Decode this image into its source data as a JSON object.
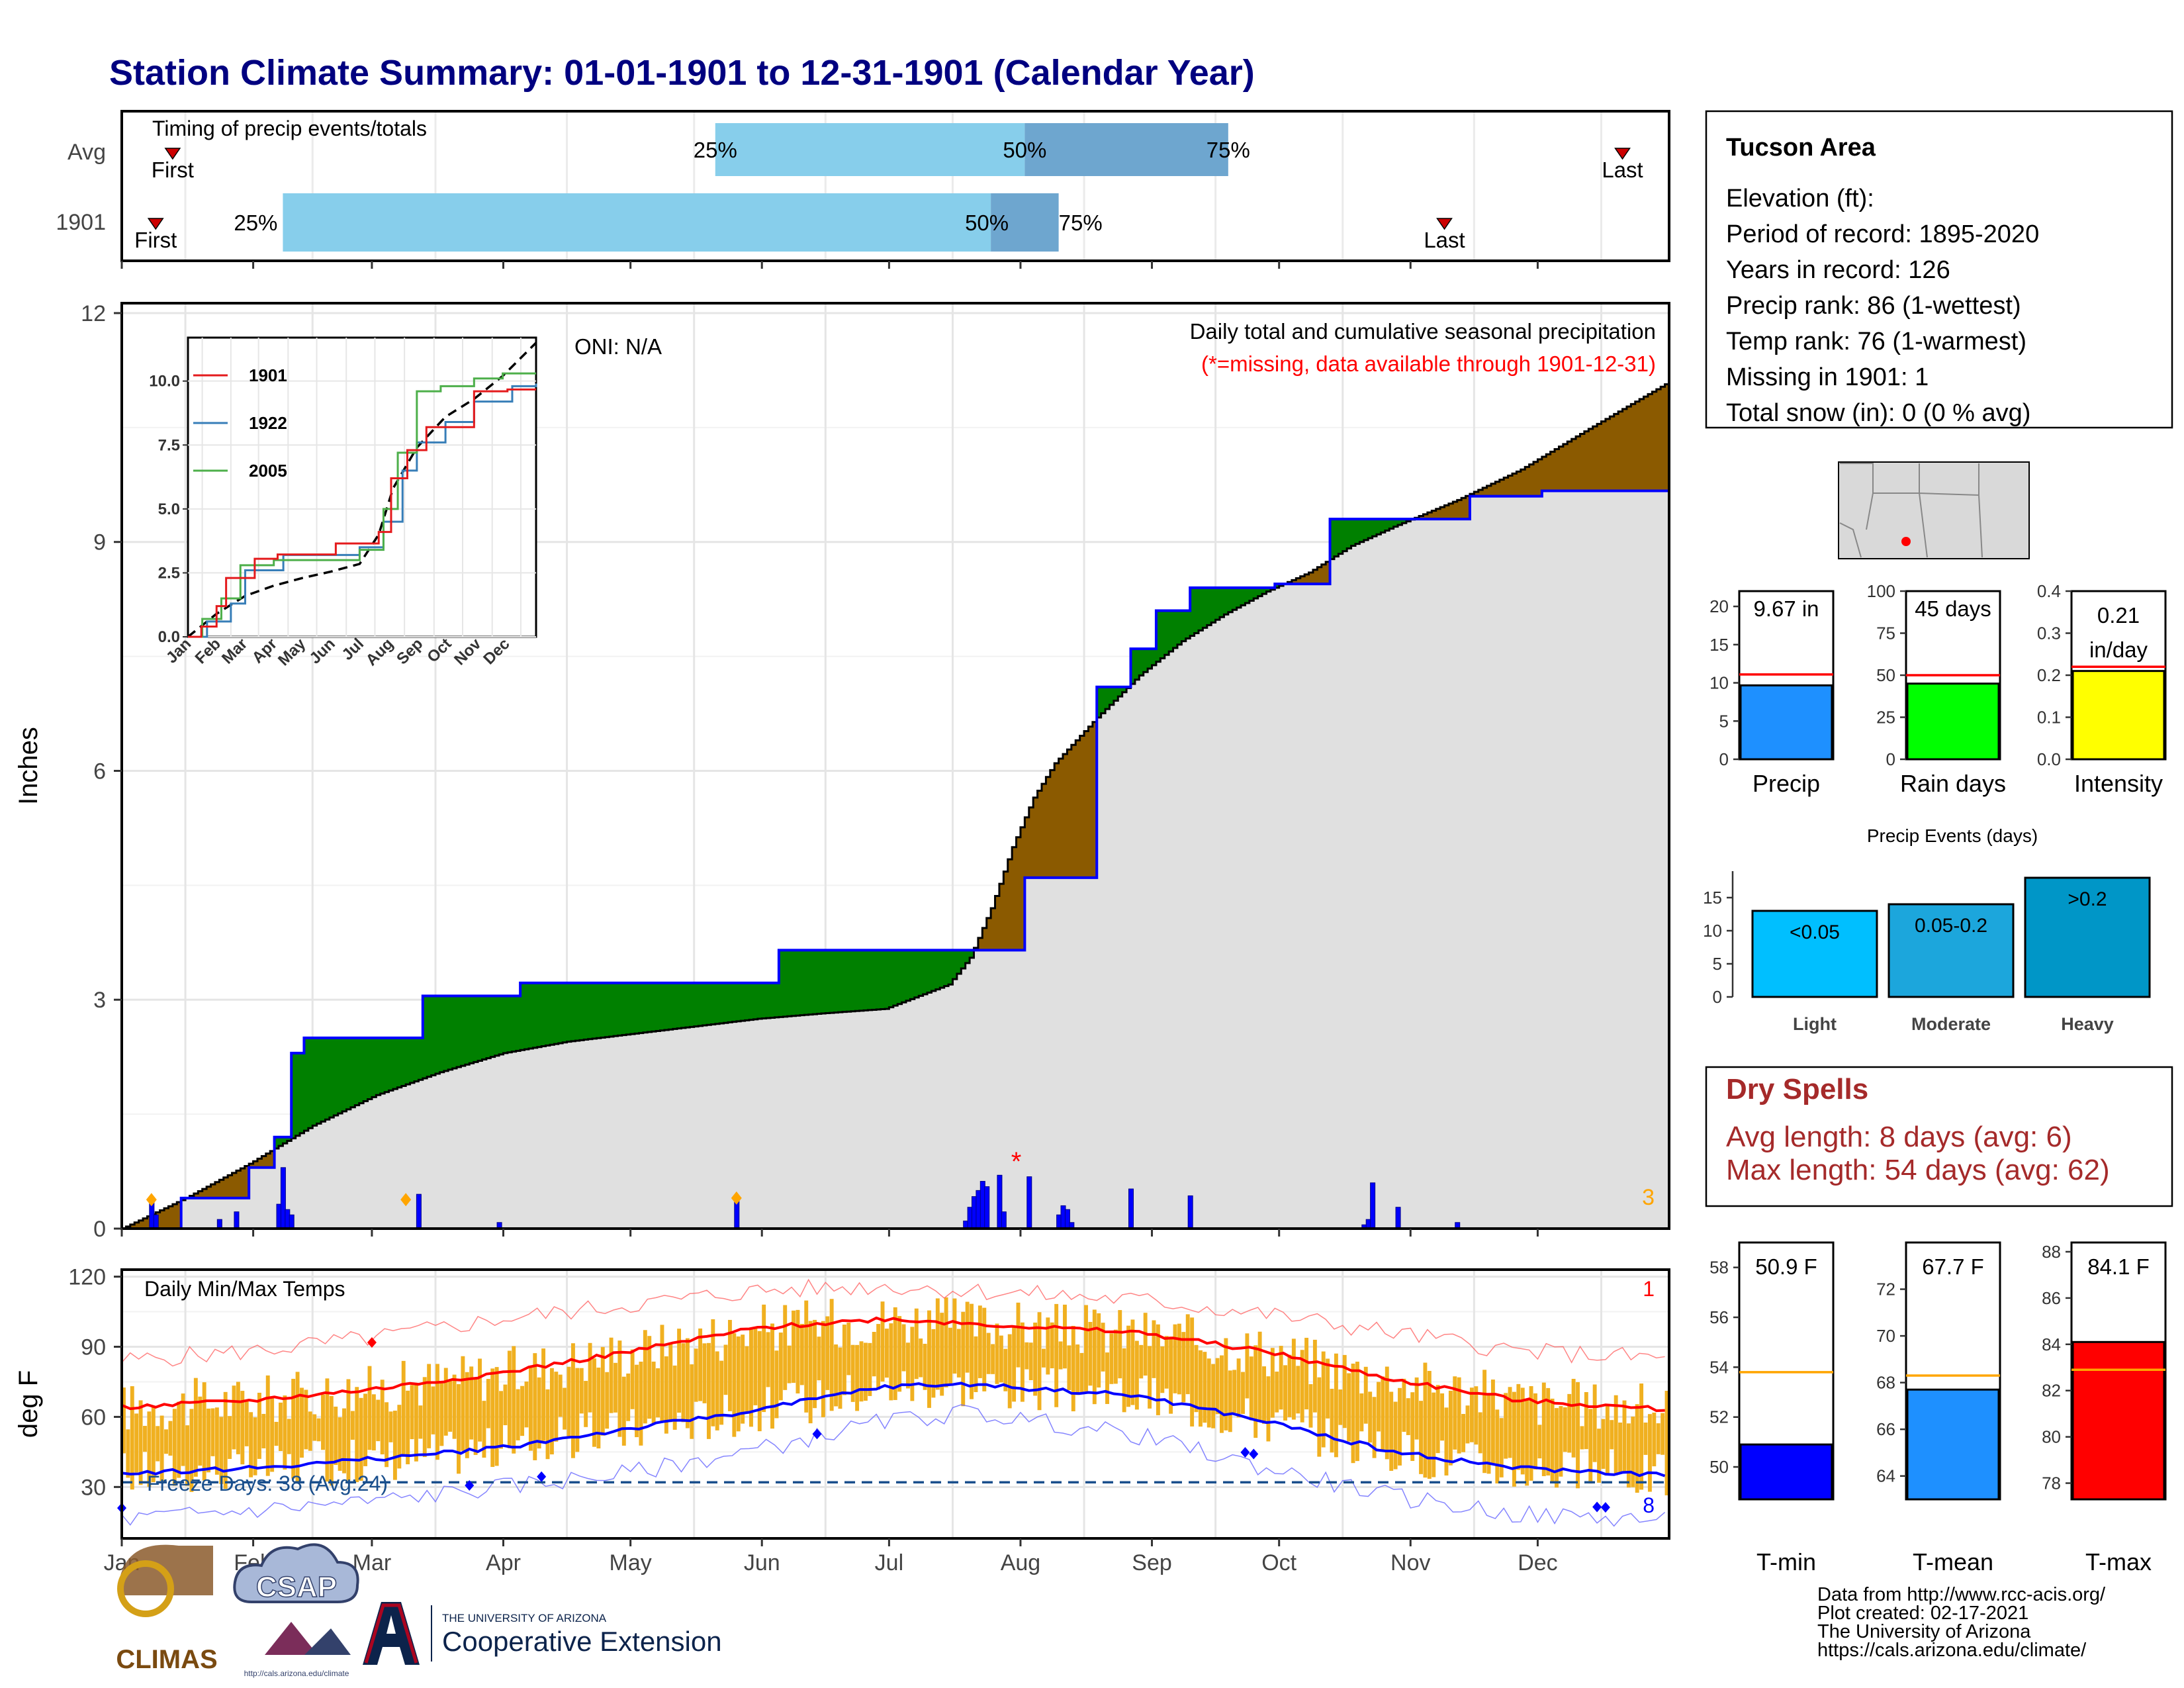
{
  "title": "Station Climate Summary: 01-01-1901 to 12-31-1901 (Calendar Year)",
  "months": [
    "Jan",
    "Feb",
    "Mar",
    "Apr",
    "May",
    "Jun",
    "Jul",
    "Aug",
    "Sep",
    "Oct",
    "Nov",
    "Dec"
  ],
  "colors": {
    "title": "#000080",
    "pct_light": "#87ceeb",
    "pct_dark": "#6ea6cf",
    "above_avg": "#008000",
    "below_avg": "#8b5a00",
    "avg_fill": "#e0e0e0",
    "daily_bar": "#0000ff",
    "temp_bar": "#f0b020",
    "max_line": "#ff0000",
    "min_line": "#0000ff",
    "dry_spells": "#a52a2a",
    "marker": "#ffa500"
  },
  "timing": {
    "title": "Timing of precip events/totals",
    "rows": [
      {
        "label": "Avg",
        "first": "First",
        "last": "Last",
        "p25": "25%",
        "p50": "50%",
        "p75": "75%",
        "first_day": 12,
        "p25_day": 140,
        "p50_day": 213,
        "p75_day": 261,
        "last_day": 354
      },
      {
        "label": "1901",
        "first": "First",
        "last": "Last",
        "p25": "25%",
        "p50": "50%",
        "p75": "75%",
        "first_day": 8,
        "p25_day": 38,
        "p50_day": 205,
        "p75_day": 221,
        "last_day": 312
      }
    ]
  },
  "precip_panel": {
    "ylabel": "Inches",
    "yticks": [
      "0",
      "3",
      "6",
      "9",
      "12"
    ],
    "header": "Daily total and cumulative seasonal precipitation",
    "missing_note": "(*=missing, data available through 1901-12-31)",
    "oni": "ONI: N/A",
    "missing_marker": "*",
    "extreme_count": "3"
  },
  "inset": {
    "yticks": [
      "0.0",
      "2.5",
      "5.0",
      "7.5",
      "10.0"
    ],
    "xticks": [
      "Jan",
      "Feb",
      "Mar",
      "Apr",
      "May",
      "Jun",
      "Jul",
      "Aug",
      "Sep",
      "Oct",
      "Nov",
      "Dec"
    ],
    "legend": [
      {
        "name": "1901",
        "color": "#e41a1c"
      },
      {
        "name": "1922",
        "color": "#377eb8"
      },
      {
        "name": "2005",
        "color": "#4daf4a"
      }
    ]
  },
  "temp_panel": {
    "ylabel": "deg F",
    "title": "Daily Min/Max Temps",
    "yticks": [
      "30",
      "60",
      "90",
      "120"
    ],
    "freeze_days": "Freeze Days: 38 (Avg:24)",
    "record_high_count": "1",
    "record_low_count": "8"
  },
  "station_box": {
    "name": "Tucson Area",
    "lines": [
      "Elevation (ft):",
      "Period of record: 1895-2020",
      "Years in record: 126",
      "Precip rank: 86 (1-wettest)",
      "Temp rank: 76 (1-warmest)",
      "Missing in 1901: 1",
      "Total snow (in): 0 (0 % avg)"
    ]
  },
  "dry_spells": {
    "title": "Dry Spells",
    "avg_length": "Avg length: 8 days (avg: 6)",
    "max_length": "Max length: 54 days (avg: 62)"
  },
  "footer": {
    "lines": [
      "Data from http://www.rcc-acis.org/",
      "Plot created: 02-17-2021",
      "The University of Arizona",
      "https://cals.arizona.edu/climate/"
    ],
    "logo_climas": "CLIMAS",
    "logo_csap": "CSAP",
    "logo_csap_url": "http://cals.arizona.edu/climate",
    "ua_small": "THE UNIVERSITY OF ARIZONA",
    "ua_big": "Cooperative Extension"
  },
  "chart_data": [
    {
      "type": "area",
      "title": "Daily total and cumulative seasonal precipitation",
      "ylabel": "Inches",
      "ylim": [
        0,
        12
      ],
      "series": [
        {
          "name": "cumulative 1901",
          "x_day": [
            0,
            14,
            30,
            36,
            40,
            43,
            71,
            94,
            155,
            213,
            230,
            238,
            244,
            252,
            262,
            272,
            285,
            318,
            335,
            365
          ],
          "values": [
            0.0,
            0.4,
            0.8,
            1.2,
            2.3,
            2.5,
            3.05,
            3.22,
            3.65,
            4.6,
            7.1,
            7.6,
            8.1,
            8.4,
            8.4,
            8.45,
            9.3,
            9.6,
            9.67,
            9.67
          ]
        },
        {
          "name": "average",
          "x_day": [
            0,
            15,
            30,
            45,
            60,
            75,
            90,
            105,
            120,
            135,
            150,
            165,
            180,
            195,
            200,
            205,
            210,
            215,
            220,
            230,
            240,
            250,
            260,
            270,
            280,
            290,
            300,
            315,
            330,
            345,
            365
          ],
          "values": [
            0.0,
            0.4,
            0.85,
            1.35,
            1.75,
            2.05,
            2.3,
            2.45,
            2.55,
            2.65,
            2.75,
            2.82,
            2.88,
            3.2,
            3.55,
            4.2,
            5.0,
            5.65,
            6.1,
            6.7,
            7.25,
            7.7,
            8.05,
            8.35,
            8.6,
            8.95,
            9.2,
            9.55,
            9.95,
            10.45,
            11.1
          ]
        }
      ],
      "daily_bars_in": [
        [
          7,
          0.38
        ],
        [
          8,
          0.18
        ],
        [
          23,
          0.12
        ],
        [
          27,
          0.22
        ],
        [
          37,
          0.32
        ],
        [
          38,
          0.8
        ],
        [
          39,
          0.25
        ],
        [
          40,
          0.18
        ],
        [
          70,
          0.45
        ],
        [
          89,
          0.08
        ],
        [
          145,
          0.4
        ],
        [
          199,
          0.1
        ],
        [
          200,
          0.28
        ],
        [
          201,
          0.42
        ],
        [
          202,
          0.5
        ],
        [
          203,
          0.62
        ],
        [
          204,
          0.55
        ],
        [
          207,
          0.7
        ],
        [
          208,
          0.22
        ],
        [
          214,
          0.68
        ],
        [
          221,
          0.18
        ],
        [
          222,
          0.3
        ],
        [
          223,
          0.25
        ],
        [
          224,
          0.08
        ],
        [
          238,
          0.52
        ],
        [
          252,
          0.43
        ],
        [
          293,
          0.05
        ],
        [
          294,
          0.12
        ],
        [
          295,
          0.6
        ],
        [
          301,
          0.28
        ],
        [
          315,
          0.08
        ]
      ],
      "markers_day": [
        7,
        67,
        145
      ],
      "missing_day": 211
    },
    {
      "type": "line",
      "title": "Daily Min/Max Temps",
      "ylabel": "deg F",
      "ylim": [
        10,
        120
      ],
      "series": [
        {
          "name": "avg max",
          "x_day": [
            0,
            30,
            60,
            90,
            120,
            150,
            180,
            200,
            240,
            270,
            300,
            330,
            365
          ],
          "values": [
            64,
            67,
            72,
            79,
            88,
            98,
            102,
            100,
            96,
            88,
            76,
            67,
            63
          ]
        },
        {
          "name": "avg min",
          "x_day": [
            0,
            30,
            60,
            90,
            120,
            150,
            180,
            200,
            240,
            270,
            300,
            330,
            365
          ],
          "values": [
            36,
            38,
            42,
            47,
            55,
            63,
            73,
            74,
            69,
            58,
            45,
            38,
            35
          ]
        },
        {
          "name": "record max",
          "x_day": [
            0,
            30,
            60,
            90,
            120,
            150,
            180,
            200,
            240,
            270,
            300,
            330,
            365
          ],
          "values": [
            84,
            88,
            94,
            102,
            108,
            114,
            116,
            114,
            110,
            104,
            96,
            88,
            85
          ]
        },
        {
          "name": "record min",
          "x_day": [
            0,
            30,
            60,
            90,
            120,
            150,
            180,
            200,
            240,
            270,
            300,
            330,
            365
          ],
          "values": [
            16,
            20,
            24,
            30,
            36,
            46,
            58,
            62,
            52,
            38,
            26,
            18,
            16
          ]
        }
      ],
      "freeze_line": 32,
      "record_high_days": [
        59
      ],
      "record_low_days": [
        0,
        82,
        99,
        164,
        265,
        267,
        348,
        350
      ]
    },
    {
      "type": "bar",
      "title": "Precip",
      "categories": [
        "Precip"
      ],
      "values": [
        9.67
      ],
      "avg": 11.1,
      "label": "9.67 in",
      "yticks": [
        "0",
        "5",
        "10",
        "15",
        "20"
      ],
      "ylim": [
        0,
        22
      ]
    },
    {
      "type": "bar",
      "title": "Rain days",
      "categories": [
        "Rain days"
      ],
      "values": [
        45
      ],
      "avg": 50,
      "label": "45 days",
      "yticks": [
        "0",
        "25",
        "50",
        "75",
        "100"
      ],
      "ylim": [
        0,
        100
      ]
    },
    {
      "type": "bar",
      "title": "Intensity",
      "categories": [
        "Intensity"
      ],
      "values": [
        0.21
      ],
      "avg": 0.22,
      "label": "0.21 in/day",
      "label_lines": [
        "0.21",
        "in/day"
      ],
      "yticks": [
        "0.0",
        "0.1",
        "0.2",
        "0.3",
        "0.4"
      ],
      "ylim": [
        0,
        0.4
      ]
    },
    {
      "type": "bar",
      "title": "Precip Events (days)",
      "categories": [
        "Light",
        "Moderate",
        "Heavy"
      ],
      "values": [
        13,
        14,
        18
      ],
      "bar_labels": [
        "<0.05",
        "0.05-0.2",
        ">0.2"
      ],
      "bar_colors": [
        "#00bfff",
        "#1ca6dc",
        "#0096c7"
      ],
      "yticks": [
        "0",
        "5",
        "10",
        "15"
      ],
      "ylim": [
        0,
        19
      ]
    },
    {
      "type": "bar",
      "title": "T-min",
      "categories": [
        "T-min"
      ],
      "values": [
        50.9
      ],
      "avg": 53.8,
      "label": "50.9 F",
      "color": "#0000ff",
      "yticks": [
        "50",
        "52",
        "54",
        "56",
        "58"
      ],
      "ylim": [
        48.7,
        59
      ]
    },
    {
      "type": "bar",
      "title": "T-mean",
      "categories": [
        "T-mean"
      ],
      "values": [
        67.7
      ],
      "avg": 68.3,
      "label": "67.7 F",
      "color": "#1e90ff",
      "yticks": [
        "64",
        "66",
        "68",
        "70",
        "72"
      ],
      "ylim": [
        63,
        74
      ]
    },
    {
      "type": "bar",
      "title": "T-max",
      "categories": [
        "T-max"
      ],
      "values": [
        84.1
      ],
      "avg": 82.9,
      "label": "84.1 F",
      "color": "#ff0000",
      "yticks": [
        "78",
        "80",
        "82",
        "84",
        "86",
        "88"
      ],
      "ylim": [
        77.3,
        88.4
      ]
    }
  ]
}
